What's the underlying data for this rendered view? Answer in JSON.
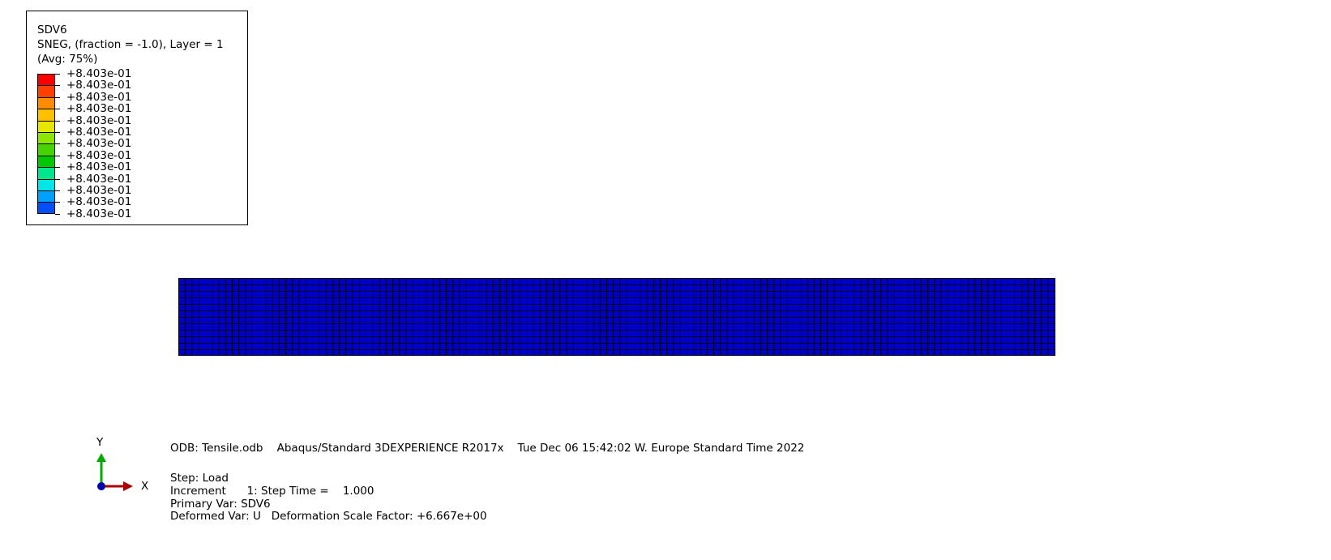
{
  "legend": {
    "title_lines": [
      "SDV6",
      "SNEG, (fraction = -1.0), Layer = 1",
      "(Avg: 75%)"
    ],
    "labels": [
      "+8.403e-01",
      "+8.403e-01",
      "+8.403e-01",
      "+8.403e-01",
      "+8.403e-01",
      "+8.403e-01",
      "+8.403e-01",
      "+8.403e-01",
      "+8.403e-01",
      "+8.403e-01",
      "+8.403e-01",
      "+8.403e-01",
      "+8.403e-01"
    ],
    "colors": [
      "#ff0000",
      "#ff4000",
      "#ff8c00",
      "#ffc000",
      "#e6e600",
      "#8ce600",
      "#46d300",
      "#00c800",
      "#00e68c",
      "#00e6e6",
      "#00a0ff",
      "#0050ff",
      "#0000ff"
    ]
  },
  "mesh": {
    "color": "#0000c8"
  },
  "triad": {
    "y_label": "Y",
    "x_label": "X",
    "y_color": "#00aa00",
    "x_color": "#aa0000"
  },
  "info": {
    "odb_line": "ODB: Tensile.odb    Abaqus/Standard 3DEXPERIENCE R2017x    Tue Dec 06 15:42:02 W. Europe Standard Time 2022",
    "step": "Step: Load",
    "increment": "Increment      1: Step Time =    1.000",
    "primary_var": "Primary Var: SDV6",
    "deformed_var": "Deformed Var: U   Deformation Scale Factor: +6.667e+00"
  }
}
